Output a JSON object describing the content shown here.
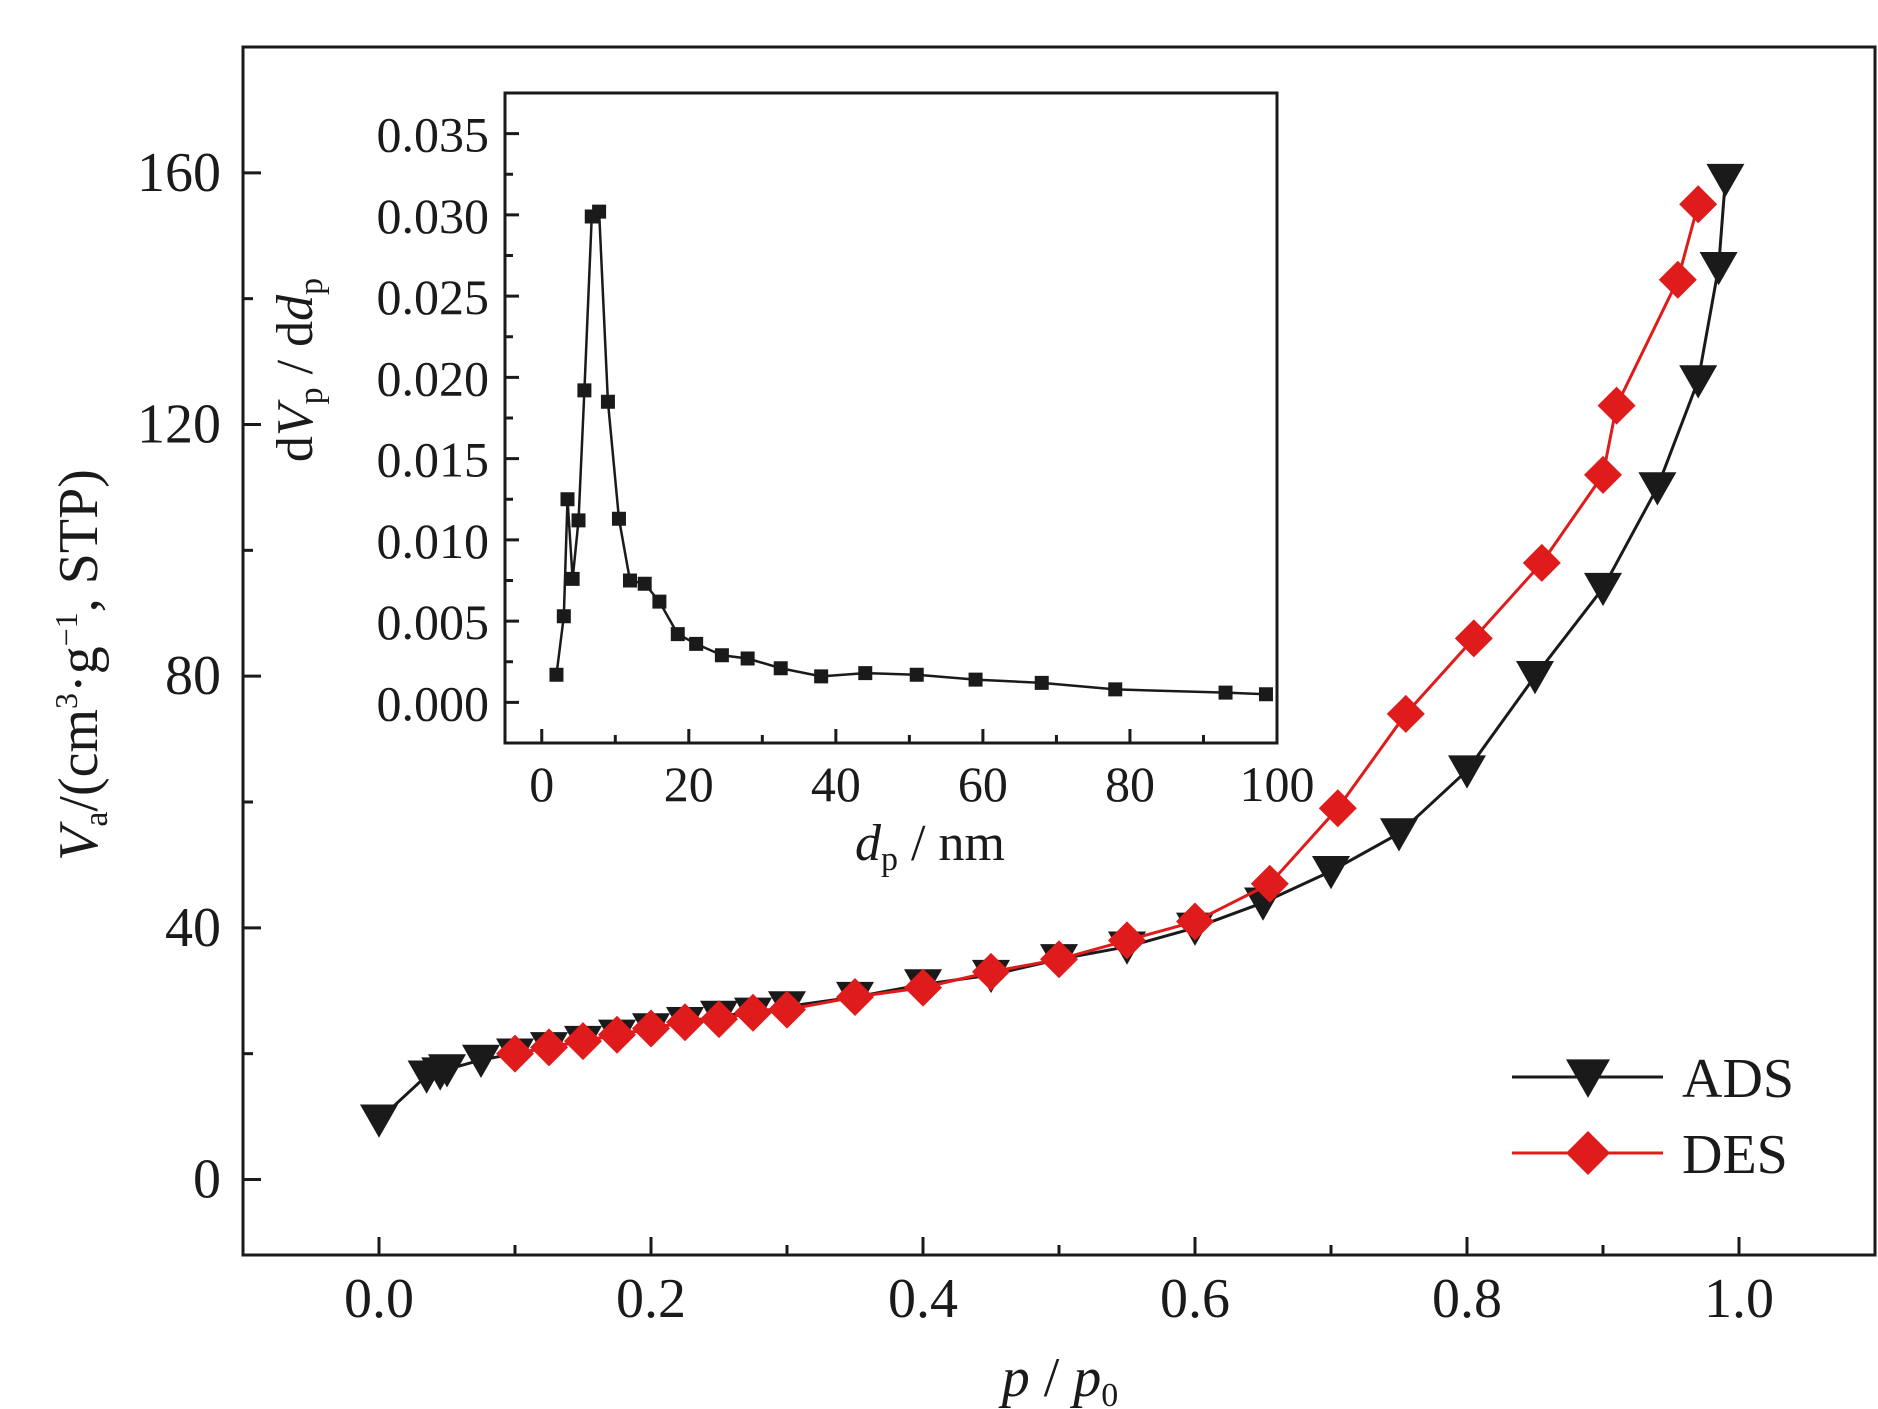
{
  "chart_data": [
    {
      "id": "main",
      "type": "line",
      "xlabel": {
        "var": "p",
        "sep": " / ",
        "var2": "p",
        "sub": "0"
      },
      "ylabel": {
        "var": "V",
        "sub": "a",
        "pre": "/(cm",
        "sup1": "3",
        "mid": "·g",
        "sup2": "−1",
        "post": ", STP)"
      },
      "xlim": [
        -0.1,
        1.1
      ],
      "ylim": [
        -12,
        180
      ],
      "xticks": [
        "0.0",
        "0.2",
        "0.4",
        "0.6",
        "0.8",
        "1.0"
      ],
      "yticks": [
        "0",
        "40",
        "80",
        "120",
        "160"
      ],
      "legend_position": "bottom-right",
      "series": [
        {
          "name": "ADS",
          "color": "#1a1a1a",
          "marker": "triangle-down",
          "x": [
            0.0,
            0.035,
            0.045,
            0.05,
            0.075,
            0.1,
            0.125,
            0.15,
            0.175,
            0.2,
            0.225,
            0.25,
            0.275,
            0.3,
            0.35,
            0.4,
            0.45,
            0.5,
            0.55,
            0.6,
            0.65,
            0.7,
            0.75,
            0.8,
            0.85,
            0.9,
            0.94,
            0.97,
            0.985,
            0.99
          ],
          "y": [
            9.5,
            16.5,
            17,
            17.5,
            19,
            20,
            21,
            22,
            23,
            24,
            25,
            26,
            26.5,
            27.5,
            29,
            31,
            32.5,
            35,
            37,
            40,
            44,
            49,
            55,
            65,
            80,
            94,
            110,
            127,
            145,
            159
          ]
        },
        {
          "name": "DES",
          "color": "#e01b1b",
          "marker": "diamond",
          "x": [
            0.1,
            0.125,
            0.15,
            0.175,
            0.2,
            0.225,
            0.25,
            0.275,
            0.3,
            0.35,
            0.4,
            0.45,
            0.5,
            0.55,
            0.6,
            0.655,
            0.705,
            0.755,
            0.805,
            0.855,
            0.9,
            0.91,
            0.955,
            0.97
          ],
          "y": [
            20,
            21,
            22,
            23,
            24,
            25,
            25.5,
            26.5,
            27,
            29,
            30.5,
            33,
            35,
            38,
            41,
            47,
            59,
            74,
            86,
            98,
            112,
            123,
            143,
            155
          ]
        }
      ]
    },
    {
      "id": "inset",
      "type": "line",
      "xlabel": {
        "var": "d",
        "sub": "p",
        "post": " / nm"
      },
      "ylabel": {
        "pre": "d",
        "var": "V",
        "sub": "p",
        "mid": " / d",
        "var2": "d",
        "sub2": "p"
      },
      "xlim": [
        -5,
        100
      ],
      "ylim": [
        -0.0025,
        0.0375
      ],
      "xticks": [
        "0",
        "20",
        "40",
        "60",
        "80",
        "100"
      ],
      "yticks": [
        "0.000",
        "0.005",
        "0.010",
        "0.015",
        "0.020",
        "0.025",
        "0.030",
        "0.035"
      ],
      "series": [
        {
          "name": "",
          "color": "#1a1a1a",
          "marker": "square",
          "x": [
            2,
            3,
            3.5,
            4.2,
            5,
            5.8,
            6.8,
            7.8,
            9,
            10.5,
            12,
            14,
            16,
            18.5,
            21,
            24.5,
            28,
            32.5,
            38,
            44,
            51,
            59,
            68,
            78,
            93,
            98.5
          ],
          "y": [
            0.0017,
            0.0053,
            0.0125,
            0.0076,
            0.0112,
            0.0192,
            0.0299,
            0.0302,
            0.0185,
            0.0113,
            0.0075,
            0.0073,
            0.0062,
            0.0042,
            0.0036,
            0.0029,
            0.0027,
            0.0021,
            0.0016,
            0.0018,
            0.0017,
            0.0014,
            0.0012,
            0.0008,
            0.0006,
            0.0005
          ]
        }
      ]
    }
  ]
}
